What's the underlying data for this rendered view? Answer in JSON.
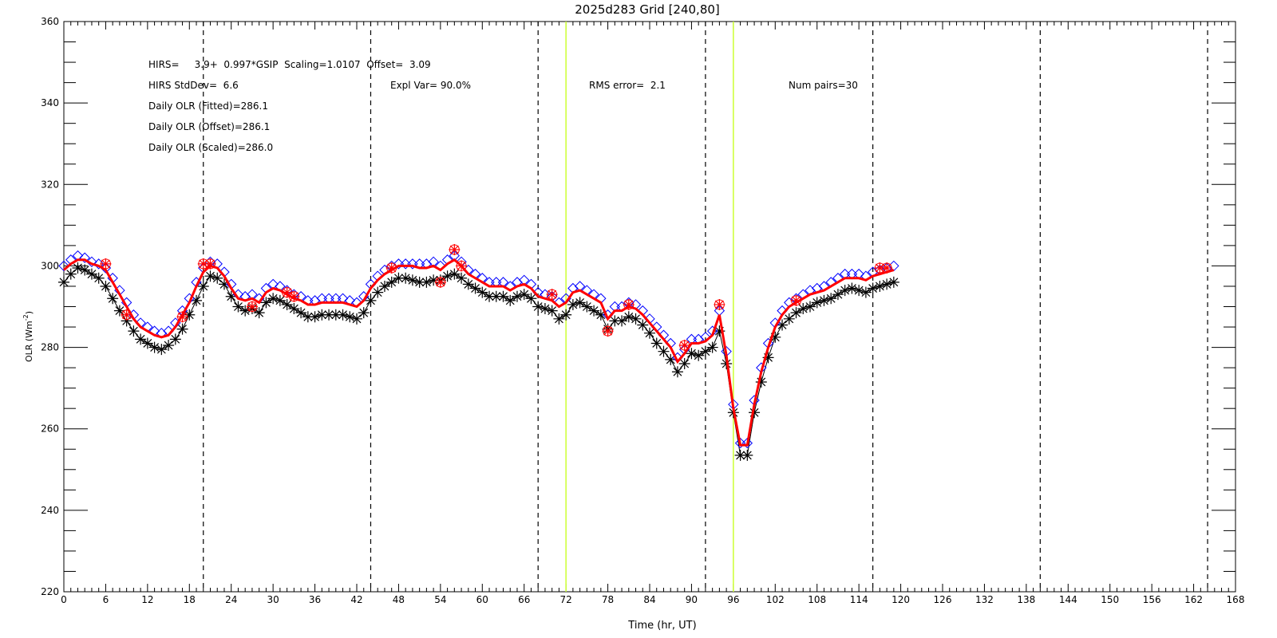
{
  "chart_data": {
    "type": "line",
    "title": "2025d283 Grid [240,80]",
    "xlabel": "Time (hr, UT)",
    "ylabel": "OLR (Wm",
    "ylabel_sup": "-2",
    "ylabel_close": ")",
    "xlim": [
      0,
      168
    ],
    "ylim": [
      220,
      360
    ],
    "x_ticks": [
      0,
      6,
      12,
      18,
      24,
      30,
      36,
      42,
      48,
      54,
      60,
      66,
      72,
      78,
      84,
      90,
      96,
      102,
      108,
      114,
      120,
      126,
      132,
      138,
      144,
      150,
      156,
      162,
      168
    ],
    "y_ticks": [
      220,
      240,
      260,
      280,
      300,
      320,
      340,
      360
    ],
    "grid": false,
    "vlines_dashed": [
      20,
      44,
      68,
      92,
      116,
      140,
      164
    ],
    "vlines_solid": [
      72,
      96
    ],
    "colors": {
      "fitted": "#ff0000",
      "scaled": "#0000ff",
      "gsip": "#000000",
      "hirs": "#ff0000",
      "vline_solid": "#ccff33"
    },
    "annotations": [
      "HIRS=     3.9+  0.997*GSIP  Scaling=1.0107  Offset=  3.09",
      "HIRS StdDev=  6.6",
      "Expl Var= 90.0%",
      "RMS error=  2.1",
      "Num pairs=30",
      "Daily OLR (Fitted)=286.1",
      "Daily OLR (Offset)=286.1",
      "Daily OLR (Scaled)=286.0"
    ],
    "x": [
      0,
      1,
      2,
      3,
      4,
      5,
      6,
      7,
      8,
      9,
      10,
      11,
      12,
      13,
      14,
      15,
      16,
      17,
      18,
      19,
      20,
      21,
      22,
      23,
      24,
      25,
      26,
      27,
      28,
      29,
      30,
      31,
      32,
      33,
      34,
      35,
      36,
      37,
      38,
      39,
      40,
      41,
      42,
      43,
      44,
      45,
      46,
      47,
      48,
      49,
      50,
      51,
      52,
      53,
      54,
      55,
      56,
      57,
      58,
      59,
      60,
      61,
      62,
      63,
      64,
      65,
      66,
      67,
      68,
      69,
      70,
      71,
      72,
      73,
      74,
      75,
      76,
      77,
      78,
      79,
      80,
      81,
      82,
      83,
      84,
      85,
      86,
      87,
      88,
      89,
      90,
      91,
      92,
      93,
      94,
      95,
      96,
      97,
      98,
      99,
      100,
      101,
      102,
      103,
      104,
      105,
      106,
      107,
      108,
      109,
      110,
      111,
      112,
      113,
      114,
      115,
      116,
      117,
      118,
      119
    ],
    "series": [
      {
        "name": "",
        "marker": "line",
        "color": "#ff0000",
        "values": [
          299,
          300.5,
          301.5,
          301.5,
          300.5,
          300,
          299,
          296,
          293,
          290,
          287,
          285,
          284,
          283,
          282.5,
          283,
          285,
          288,
          291,
          295,
          298.5,
          300,
          299.5,
          297.5,
          294.5,
          292,
          291.5,
          292,
          291,
          293.5,
          294.5,
          294,
          293,
          292,
          291.5,
          290.5,
          290.5,
          291,
          291,
          291,
          291,
          290.5,
          290,
          291.5,
          294.5,
          296.5,
          298,
          299,
          300,
          300,
          300,
          299.5,
          299.5,
          300,
          299,
          300.5,
          301.5,
          300,
          298,
          297,
          296,
          295,
          295,
          295,
          294,
          295,
          295.5,
          294.5,
          292.5,
          292,
          291.5,
          290,
          291,
          293.5,
          294,
          293,
          292,
          291,
          287,
          289,
          289,
          290,
          289.5,
          288,
          286,
          284,
          282,
          280,
          276.5,
          278.5,
          281,
          281,
          281.5,
          283,
          288,
          278,
          265,
          256,
          256,
          266,
          274,
          280,
          285,
          288,
          290,
          291,
          292,
          293,
          293.5,
          294,
          295,
          296,
          297,
          297,
          297,
          296.5,
          297.5,
          298,
          298.5,
          299
        ]
      },
      {
        "name": "",
        "marker": "diamond",
        "color": "#0000ff",
        "values": [
          300,
          301.5,
          302.5,
          302,
          301,
          300.5,
          299.5,
          297,
          294,
          291,
          288,
          286,
          285,
          284,
          283.5,
          284,
          286,
          289,
          292,
          296,
          299.5,
          301,
          300.5,
          298.5,
          295.5,
          293,
          292.5,
          293,
          292,
          294.5,
          295.5,
          295,
          294,
          293,
          292.5,
          291.5,
          291.5,
          292,
          292,
          292,
          292,
          291.5,
          291,
          292.5,
          295.5,
          297.5,
          299,
          300,
          300.5,
          300.5,
          300.5,
          300.5,
          300.5,
          301,
          300,
          301.5,
          302.5,
          301,
          299,
          298,
          297,
          296,
          296,
          296,
          295,
          296,
          296.5,
          295.5,
          293.5,
          293,
          292.5,
          291,
          292,
          294.5,
          295,
          294,
          293,
          292,
          288,
          290,
          290,
          291,
          290.5,
          289,
          287,
          285,
          283,
          281,
          277.5,
          279.5,
          282,
          282,
          282.5,
          284,
          289,
          279,
          266,
          256.5,
          256.5,
          267,
          275,
          281,
          286,
          289,
          291,
          292,
          293,
          294,
          294.5,
          295,
          296,
          297,
          298,
          298,
          298,
          297.5,
          298.5,
          299,
          299.5,
          300
        ]
      },
      {
        "name": "",
        "marker": "asterisk",
        "color": "#000000",
        "values": [
          296,
          298,
          299.5,
          299,
          298,
          297,
          295,
          292,
          289,
          286.5,
          284,
          282,
          281,
          280,
          279.5,
          280.5,
          282,
          284.5,
          288,
          291.5,
          295,
          297.5,
          297,
          295.5,
          292.5,
          290,
          289,
          289.5,
          288.5,
          291,
          292,
          291.5,
          290.5,
          289.5,
          288.5,
          287.5,
          287.5,
          288,
          288,
          288,
          288,
          287.5,
          287,
          288.5,
          291.5,
          293.5,
          295,
          296,
          297,
          297,
          296.5,
          296,
          296,
          296.5,
          296.5,
          297.5,
          298,
          297,
          295.5,
          294.5,
          293.5,
          292.5,
          292.5,
          292.5,
          291.5,
          292.5,
          293,
          292,
          290,
          289.5,
          289,
          287,
          288,
          290.5,
          291,
          290,
          289,
          288,
          284.5,
          286.5,
          286.5,
          287.5,
          287,
          285.5,
          283.5,
          281,
          279,
          277,
          274,
          276,
          278.5,
          278,
          279,
          280,
          284,
          276,
          264,
          253.5,
          253.5,
          264,
          271.5,
          277.5,
          282.5,
          285.5,
          287,
          288.5,
          289.5,
          290,
          291,
          291.5,
          292,
          293,
          294,
          294.5,
          294,
          293.5,
          294.5,
          295,
          295.5,
          296
        ]
      },
      {
        "name": "",
        "marker": "asterisk-open",
        "color": "#ff0000",
        "x": [
          6,
          9,
          17,
          20,
          21,
          27,
          32,
          33,
          47,
          54,
          56,
          57,
          70,
          78,
          81,
          89,
          94,
          105,
          117,
          118
        ],
        "values": [
          300.5,
          288,
          287.5,
          300.5,
          300.5,
          290,
          293.5,
          292.5,
          299.5,
          296,
          304,
          300,
          293,
          284,
          290.5,
          280.5,
          290.5,
          291.5,
          299.5,
          299.5
        ]
      }
    ]
  }
}
